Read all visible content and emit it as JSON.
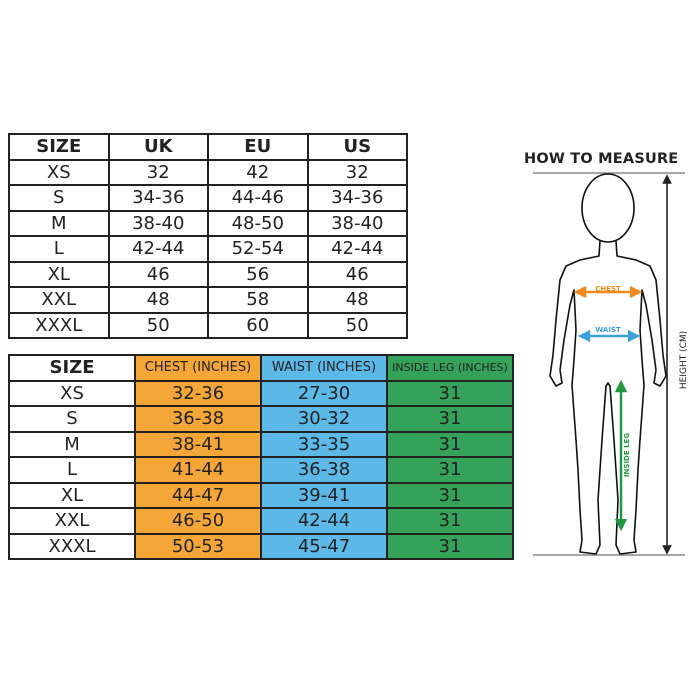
{
  "conversion_table": {
    "headers": [
      "SIZE",
      "UK",
      "EU",
      "US"
    ],
    "rows": [
      [
        "XS",
        "32",
        "42",
        "32"
      ],
      [
        "S",
        "34-36",
        "44-46",
        "34-36"
      ],
      [
        "M",
        "38-40",
        "48-50",
        "38-40"
      ],
      [
        "L",
        "42-44",
        "52-54",
        "42-44"
      ],
      [
        "XL",
        "46",
        "56",
        "46"
      ],
      [
        "XXL",
        "48",
        "58",
        "48"
      ],
      [
        "XXXL",
        "50",
        "60",
        "50"
      ]
    ]
  },
  "measurement_table": {
    "headers": [
      "SIZE",
      "CHEST (INCHES)",
      "WAIST (INCHES)",
      "INSIDE LEG (INCHES)"
    ],
    "rows": [
      [
        "XS",
        "32-36",
        "27-30",
        "31"
      ],
      [
        "S",
        "36-38",
        "30-32",
        "31"
      ],
      [
        "M",
        "38-41",
        "33-35",
        "31"
      ],
      [
        "L",
        "41-44",
        "36-38",
        "31"
      ],
      [
        "XL",
        "44-47",
        "39-41",
        "31"
      ],
      [
        "XXL",
        "46-50",
        "42-44",
        "31"
      ],
      [
        "XXXL",
        "50-53",
        "45-47",
        "31"
      ]
    ],
    "colors": {
      "chest": "#f4a637",
      "waist": "#5cb8e6",
      "inside_leg": "#34a259"
    }
  },
  "how_to_measure": {
    "title": "HOW TO MEASURE",
    "chest_label": "CHEST",
    "waist_label": "WAIST",
    "inside_leg_label": "INSIDE LEG",
    "height_label": "HEIGHT (CM)"
  }
}
